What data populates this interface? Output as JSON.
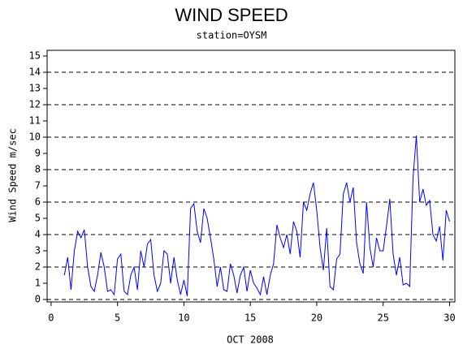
{
  "chart_data": {
    "type": "line",
    "title": "WIND SPEED",
    "subtitle": "station=OYSM",
    "x_label": "OCT 2008",
    "y_label": "Wind Speed m/sec",
    "color": "#0000ff",
    "x": [
      1,
      1.25,
      1.5,
      1.75,
      2,
      2.25,
      2.5,
      2.75,
      3,
      3.25,
      3.5,
      3.75,
      4,
      4.25,
      4.5,
      4.75,
      5,
      5.25,
      5.5,
      5.75,
      6,
      6.25,
      6.5,
      6.75,
      7,
      7.25,
      7.5,
      7.75,
      8,
      8.25,
      8.5,
      8.75,
      9,
      9.25,
      9.5,
      9.75,
      10,
      10.25,
      10.5,
      10.75,
      11,
      11.25,
      11.5,
      11.75,
      12,
      12.25,
      12.5,
      12.75,
      13,
      13.25,
      13.5,
      13.75,
      14,
      14.25,
      14.5,
      14.75,
      15,
      15.25,
      15.5,
      15.75,
      16,
      16.25,
      16.5,
      16.75,
      17,
      17.25,
      17.5,
      17.75,
      18,
      18.25,
      18.5,
      18.75,
      19,
      19.25,
      19.5,
      19.75,
      20,
      20.25,
      20.5,
      20.75,
      21,
      21.25,
      21.5,
      21.75,
      22,
      22.25,
      22.5,
      22.75,
      23,
      23.25,
      23.5,
      23.75,
      24,
      24.25,
      24.5,
      24.75,
      25,
      25.25,
      25.5,
      25.75,
      26,
      26.25,
      26.5,
      26.75,
      27,
      27.25,
      27.5,
      27.75,
      28,
      28.25,
      28.5,
      28.75,
      29,
      29.25,
      29.5,
      29.75,
      30
    ],
    "values": [
      1.5,
      2.6,
      0.6,
      3.0,
      4.2,
      3.8,
      4.3,
      2.0,
      0.8,
      0.5,
      1.5,
      2.9,
      2.0,
      0.5,
      0.6,
      0.3,
      2.5,
      2.8,
      0.5,
      0.3,
      1.5,
      2.0,
      0.6,
      3.0,
      2.0,
      3.4,
      3.7,
      1.5,
      0.5,
      1.0,
      3.0,
      2.8,
      1.0,
      2.6,
      1.2,
      0.3,
      1.2,
      0.2,
      5.6,
      5.9,
      4.2,
      3.5,
      5.6,
      5.0,
      3.8,
      2.5,
      0.8,
      2.0,
      0.6,
      0.5,
      2.2,
      1.5,
      0.4,
      1.5,
      2.0,
      0.5,
      1.8,
      1.0,
      0.7,
      0.3,
      1.4,
      0.3,
      1.5,
      2.2,
      4.6,
      3.8,
      3.2,
      4.0,
      2.8,
      4.8,
      4.2,
      2.6,
      6.0,
      5.5,
      6.5,
      7.2,
      5.5,
      3.2,
      1.8,
      4.4,
      0.8,
      0.6,
      2.5,
      2.8,
      6.5,
      7.2,
      6.0,
      6.9,
      3.5,
      2.2,
      1.6,
      6.0,
      3.2,
      2.0,
      3.8,
      3.0,
      3.0,
      4.5,
      6.2,
      2.8,
      1.5,
      2.6,
      0.9,
      1.0,
      0.8,
      7.5,
      10.1,
      6.0,
      6.8,
      5.8,
      6.1,
      4.0,
      3.6,
      4.5,
      2.4,
      5.5,
      4.8
    ],
    "xlim": [
      -0.3,
      30.4
    ],
    "xticks": [
      0,
      5,
      10,
      15,
      20,
      25,
      30
    ],
    "ylim": [
      -0.15,
      15.35
    ],
    "yticks": [
      0,
      1,
      2,
      3,
      4,
      5,
      6,
      7,
      8,
      9,
      10,
      11,
      12,
      13,
      14,
      15
    ],
    "grid": true
  }
}
